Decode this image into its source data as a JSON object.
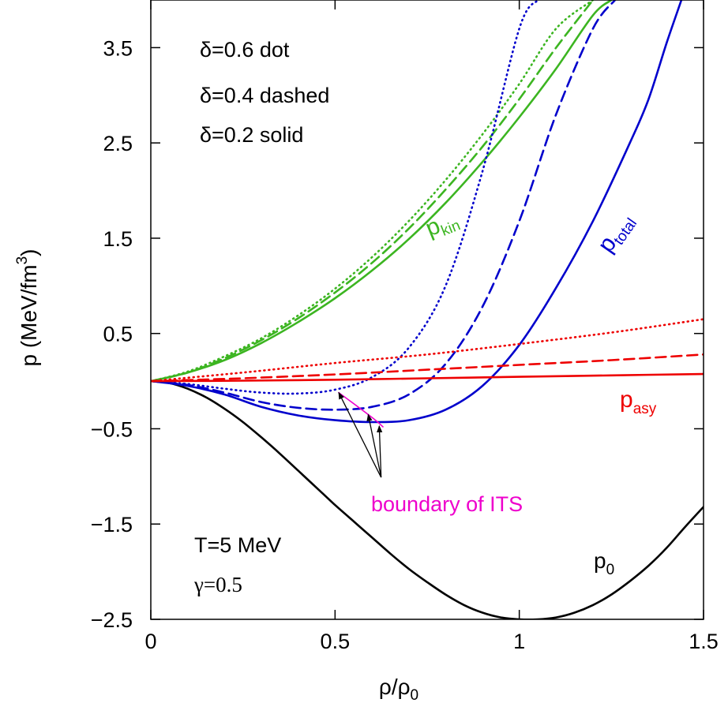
{
  "chart_data": {
    "type": "line",
    "xlabel": "ρ/ρ0",
    "ylabel": "p (MeV/fm3)",
    "xlim": [
      0,
      1.5
    ],
    "ylim": [
      -2.5,
      4.0
    ],
    "x_ticks": [
      {
        "value": 0,
        "label": "0"
      },
      {
        "value": 0.5,
        "label": "0.5"
      },
      {
        "value": 1,
        "label": "1"
      },
      {
        "value": 1.5,
        "label": "1.5"
      }
    ],
    "y_ticks": [
      {
        "value": 3.5,
        "label": "3.5"
      },
      {
        "value": 2.5,
        "label": "2.5"
      },
      {
        "value": 1.5,
        "label": "1.5"
      },
      {
        "value": 0.5,
        "label": "0.5"
      },
      {
        "value": -0.5,
        "label": "−0.5"
      },
      {
        "value": -1.5,
        "label": "−1.5"
      },
      {
        "value": -2.5,
        "label": "−2.5"
      }
    ],
    "colors": {
      "kin": "#3cb521",
      "total": "#0000cc",
      "asy": "#ee0000",
      "p0": "#000000",
      "its": "#ee00cc"
    },
    "series": [
      {
        "group": "p0",
        "style": "solid",
        "x": [
          0,
          0.05,
          0.1,
          0.15,
          0.2,
          0.25,
          0.3,
          0.35,
          0.4,
          0.45,
          0.5,
          0.55,
          0.6,
          0.65,
          0.7,
          0.75,
          0.8,
          0.85,
          0.9,
          0.95,
          1.0,
          1.05,
          1.1,
          1.15,
          1.2,
          1.25,
          1.3,
          1.35,
          1.4,
          1.45,
          1.5
        ],
        "y": [
          0,
          -0.02,
          -0.08,
          -0.17,
          -0.29,
          -0.43,
          -0.59,
          -0.76,
          -0.94,
          -1.12,
          -1.3,
          -1.47,
          -1.64,
          -1.81,
          -1.97,
          -2.11,
          -2.24,
          -2.35,
          -2.43,
          -2.48,
          -2.5,
          -2.5,
          -2.48,
          -2.43,
          -2.35,
          -2.24,
          -2.1,
          -1.94,
          -1.75,
          -1.53,
          -1.32
        ]
      },
      {
        "group": "kin",
        "style": "dot",
        "x": [
          0,
          0.1,
          0.2,
          0.3,
          0.4,
          0.5,
          0.6,
          0.7,
          0.8,
          0.9,
          1.0,
          1.1,
          1.2
        ],
        "y": [
          0,
          0.1,
          0.26,
          0.45,
          0.69,
          0.97,
          1.3,
          1.68,
          2.11,
          2.59,
          3.12,
          3.7,
          4.0
        ]
      },
      {
        "group": "kin",
        "style": "dashed",
        "x": [
          0,
          0.1,
          0.2,
          0.3,
          0.4,
          0.5,
          0.6,
          0.7,
          0.8,
          0.9,
          1.0,
          1.1,
          1.2
        ],
        "y": [
          0,
          0.09,
          0.24,
          0.43,
          0.66,
          0.93,
          1.24,
          1.6,
          2.01,
          2.46,
          2.96,
          3.5,
          4.0
        ]
      },
      {
        "group": "kin",
        "style": "solid",
        "x": [
          0,
          0.1,
          0.2,
          0.3,
          0.4,
          0.5,
          0.6,
          0.7,
          0.8,
          0.9,
          1.0,
          1.1,
          1.2,
          1.25
        ],
        "y": [
          0,
          0.09,
          0.22,
          0.4,
          0.62,
          0.87,
          1.16,
          1.49,
          1.87,
          2.3,
          2.77,
          3.28,
          3.84,
          4.0
        ]
      },
      {
        "group": "total",
        "style": "dot",
        "x": [
          0,
          0.1,
          0.2,
          0.3,
          0.4,
          0.5,
          0.6,
          0.7,
          0.8,
          0.9,
          1.0,
          1.05
        ],
        "y": [
          0,
          -0.03,
          -0.08,
          -0.12,
          -0.13,
          -0.09,
          0.04,
          0.35,
          1.0,
          2.2,
          3.7,
          4.0
        ]
      },
      {
        "group": "total",
        "style": "dashed",
        "x": [
          0,
          0.1,
          0.2,
          0.3,
          0.4,
          0.5,
          0.6,
          0.7,
          0.8,
          0.9,
          1.0,
          1.1,
          1.2,
          1.26
        ],
        "y": [
          0,
          -0.04,
          -0.12,
          -0.22,
          -0.28,
          -0.3,
          -0.27,
          -0.14,
          0.18,
          0.78,
          1.68,
          2.8,
          3.7,
          4.0
        ]
      },
      {
        "group": "total",
        "style": "solid",
        "x": [
          0,
          0.1,
          0.2,
          0.3,
          0.4,
          0.5,
          0.6,
          0.7,
          0.8,
          0.9,
          1.0,
          1.1,
          1.2,
          1.3,
          1.35,
          1.4,
          1.44
        ],
        "y": [
          0,
          -0.05,
          -0.14,
          -0.27,
          -0.36,
          -0.41,
          -0.43,
          -0.41,
          -0.3,
          -0.05,
          0.38,
          0.98,
          1.68,
          2.5,
          2.95,
          3.55,
          4.0
        ]
      },
      {
        "group": "asy",
        "style": "dot",
        "x": [
          0,
          0.25,
          0.5,
          0.75,
          1.0,
          1.25,
          1.5
        ],
        "y": [
          0,
          0.09,
          0.19,
          0.28,
          0.39,
          0.51,
          0.65
        ]
      },
      {
        "group": "asy",
        "style": "dashed",
        "x": [
          0,
          0.25,
          0.5,
          0.75,
          1.0,
          1.25,
          1.5
        ],
        "y": [
          0,
          0.03,
          0.07,
          0.12,
          0.17,
          0.22,
          0.28
        ]
      },
      {
        "group": "asy",
        "style": "solid",
        "x": [
          0,
          0.25,
          0.5,
          0.75,
          1.0,
          1.25,
          1.5
        ],
        "y": [
          0,
          0.005,
          0.015,
          0.03,
          0.045,
          0.06,
          0.075
        ]
      },
      {
        "group": "its",
        "style": "solid",
        "x": [
          0.51,
          0.6,
          0.63
        ],
        "y": [
          -0.12,
          -0.38,
          -0.48
        ]
      }
    ],
    "its_arrows": {
      "from": {
        "x": 0.625,
        "y": -1.01
      },
      "to": [
        {
          "x": 0.51,
          "y": -0.12
        },
        {
          "x": 0.59,
          "y": -0.35
        },
        {
          "x": 0.62,
          "y": -0.47
        }
      ]
    },
    "annotations": {
      "delta_dot": "δ=0.6 dot",
      "delta_dashed": "δ=0.4 dashed",
      "delta_solid": "δ=0.2 solid",
      "temperature": "T=5 MeV",
      "gamma": "γ=0.5",
      "boundary": "boundary of ITS",
      "p_kin": {
        "base": "p",
        "sub": "kin"
      },
      "p_total": {
        "base": "p",
        "sub": "total"
      },
      "p_asy": {
        "base": "p",
        "sub": "asy"
      },
      "p_0": {
        "base": "p",
        "sub": "0"
      }
    }
  }
}
